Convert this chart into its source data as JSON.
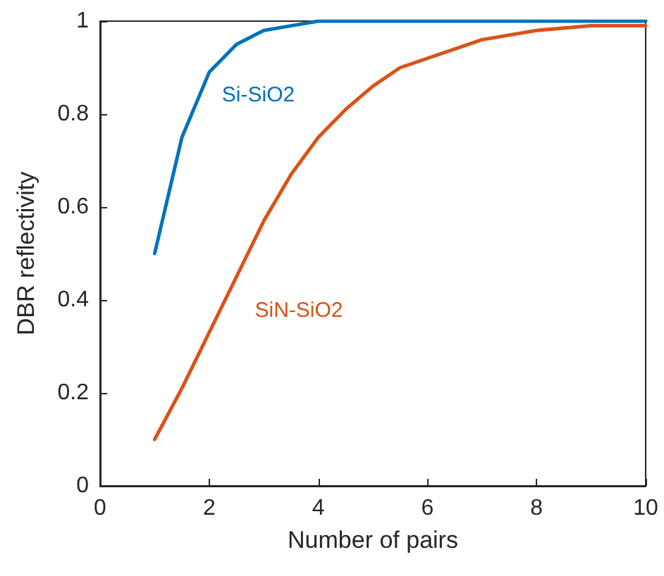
{
  "chart_data": {
    "type": "line",
    "xlabel": "Number of pairs",
    "ylabel": "DBR reflectivity",
    "xlim": [
      0,
      10
    ],
    "xticks": [
      0,
      2,
      4,
      6,
      8,
      10
    ],
    "ylim": [
      0,
      1
    ],
    "yticks": [
      0,
      0.2,
      0.4,
      0.6,
      0.8,
      1
    ],
    "grid": false,
    "legend": false,
    "marker": "none",
    "line_style": "solid",
    "series": [
      {
        "name": "Si-SiO2",
        "color": "#0072bd",
        "x": [
          1,
          1.5,
          2,
          2.5,
          3,
          3.5,
          4,
          5,
          6,
          8,
          10
        ],
        "values": [
          0.5,
          0.75,
          0.89,
          0.95,
          0.98,
          0.99,
          1,
          1,
          1,
          1,
          1
        ]
      },
      {
        "name": "SiN-SiO2",
        "color": "#d95319",
        "x": [
          1,
          1.5,
          2,
          2.5,
          3,
          3.5,
          4,
          4.5,
          5,
          5.5,
          6,
          7,
          8,
          9,
          10
        ],
        "values": [
          0.1,
          0.21,
          0.33,
          0.45,
          0.57,
          0.67,
          0.75,
          0.81,
          0.86,
          0.9,
          0.92,
          0.96,
          0.98,
          0.99,
          0.99
        ]
      }
    ]
  }
}
